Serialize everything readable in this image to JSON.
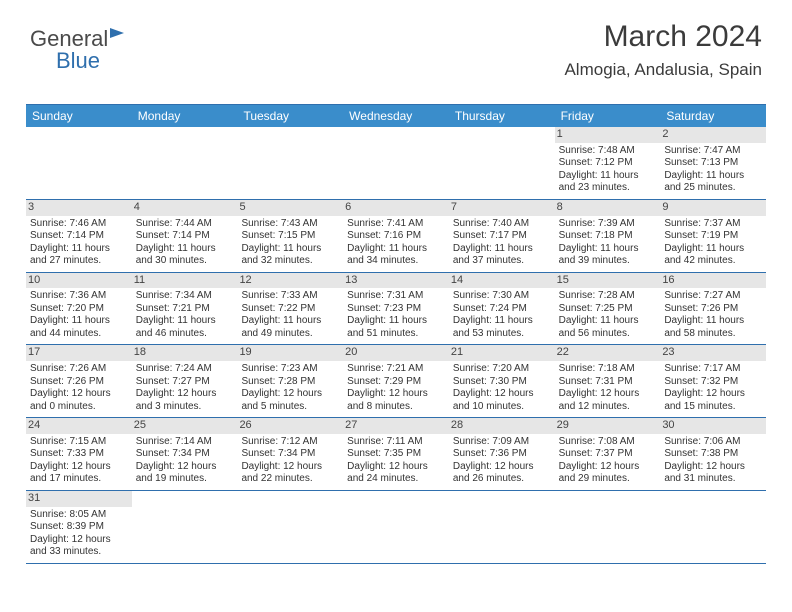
{
  "logo": {
    "part1": "General",
    "part2": "Blue"
  },
  "title": "March 2024",
  "subtitle": "Almogia, Andalusia, Spain",
  "colors": {
    "header_bg": "#3a8dcb",
    "border": "#2f6fad",
    "daynum_bg": "#e6e6e6",
    "text": "#333333"
  },
  "daynames": [
    "Sunday",
    "Monday",
    "Tuesday",
    "Wednesday",
    "Thursday",
    "Friday",
    "Saturday"
  ],
  "first_weekday": 5,
  "days": [
    {
      "n": 1,
      "sr": "7:48 AM",
      "ss": "7:12 PM",
      "dl": "11 hours and 23 minutes."
    },
    {
      "n": 2,
      "sr": "7:47 AM",
      "ss": "7:13 PM",
      "dl": "11 hours and 25 minutes."
    },
    {
      "n": 3,
      "sr": "7:46 AM",
      "ss": "7:14 PM",
      "dl": "11 hours and 27 minutes."
    },
    {
      "n": 4,
      "sr": "7:44 AM",
      "ss": "7:14 PM",
      "dl": "11 hours and 30 minutes."
    },
    {
      "n": 5,
      "sr": "7:43 AM",
      "ss": "7:15 PM",
      "dl": "11 hours and 32 minutes."
    },
    {
      "n": 6,
      "sr": "7:41 AM",
      "ss": "7:16 PM",
      "dl": "11 hours and 34 minutes."
    },
    {
      "n": 7,
      "sr": "7:40 AM",
      "ss": "7:17 PM",
      "dl": "11 hours and 37 minutes."
    },
    {
      "n": 8,
      "sr": "7:39 AM",
      "ss": "7:18 PM",
      "dl": "11 hours and 39 minutes."
    },
    {
      "n": 9,
      "sr": "7:37 AM",
      "ss": "7:19 PM",
      "dl": "11 hours and 42 minutes."
    },
    {
      "n": 10,
      "sr": "7:36 AM",
      "ss": "7:20 PM",
      "dl": "11 hours and 44 minutes."
    },
    {
      "n": 11,
      "sr": "7:34 AM",
      "ss": "7:21 PM",
      "dl": "11 hours and 46 minutes."
    },
    {
      "n": 12,
      "sr": "7:33 AM",
      "ss": "7:22 PM",
      "dl": "11 hours and 49 minutes."
    },
    {
      "n": 13,
      "sr": "7:31 AM",
      "ss": "7:23 PM",
      "dl": "11 hours and 51 minutes."
    },
    {
      "n": 14,
      "sr": "7:30 AM",
      "ss": "7:24 PM",
      "dl": "11 hours and 53 minutes."
    },
    {
      "n": 15,
      "sr": "7:28 AM",
      "ss": "7:25 PM",
      "dl": "11 hours and 56 minutes."
    },
    {
      "n": 16,
      "sr": "7:27 AM",
      "ss": "7:26 PM",
      "dl": "11 hours and 58 minutes."
    },
    {
      "n": 17,
      "sr": "7:26 AM",
      "ss": "7:26 PM",
      "dl": "12 hours and 0 minutes."
    },
    {
      "n": 18,
      "sr": "7:24 AM",
      "ss": "7:27 PM",
      "dl": "12 hours and 3 minutes."
    },
    {
      "n": 19,
      "sr": "7:23 AM",
      "ss": "7:28 PM",
      "dl": "12 hours and 5 minutes."
    },
    {
      "n": 20,
      "sr": "7:21 AM",
      "ss": "7:29 PM",
      "dl": "12 hours and 8 minutes."
    },
    {
      "n": 21,
      "sr": "7:20 AM",
      "ss": "7:30 PM",
      "dl": "12 hours and 10 minutes."
    },
    {
      "n": 22,
      "sr": "7:18 AM",
      "ss": "7:31 PM",
      "dl": "12 hours and 12 minutes."
    },
    {
      "n": 23,
      "sr": "7:17 AM",
      "ss": "7:32 PM",
      "dl": "12 hours and 15 minutes."
    },
    {
      "n": 24,
      "sr": "7:15 AM",
      "ss": "7:33 PM",
      "dl": "12 hours and 17 minutes."
    },
    {
      "n": 25,
      "sr": "7:14 AM",
      "ss": "7:34 PM",
      "dl": "12 hours and 19 minutes."
    },
    {
      "n": 26,
      "sr": "7:12 AM",
      "ss": "7:34 PM",
      "dl": "12 hours and 22 minutes."
    },
    {
      "n": 27,
      "sr": "7:11 AM",
      "ss": "7:35 PM",
      "dl": "12 hours and 24 minutes."
    },
    {
      "n": 28,
      "sr": "7:09 AM",
      "ss": "7:36 PM",
      "dl": "12 hours and 26 minutes."
    },
    {
      "n": 29,
      "sr": "7:08 AM",
      "ss": "7:37 PM",
      "dl": "12 hours and 29 minutes."
    },
    {
      "n": 30,
      "sr": "7:06 AM",
      "ss": "7:38 PM",
      "dl": "12 hours and 31 minutes."
    },
    {
      "n": 31,
      "sr": "8:05 AM",
      "ss": "8:39 PM",
      "dl": "12 hours and 33 minutes."
    }
  ],
  "labels": {
    "sunrise": "Sunrise:",
    "sunset": "Sunset:",
    "daylight": "Daylight:"
  }
}
